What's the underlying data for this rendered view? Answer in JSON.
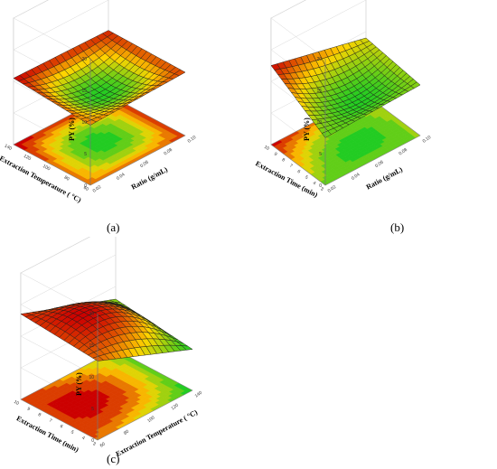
{
  "chart_data": [
    {
      "id": "a",
      "type": "surface3d",
      "caption": "(a)",
      "xlabel": "Ratio (g/mL)",
      "ylabel": "Extraction Temperature ( °C)",
      "zlabel": "PY (%)",
      "x_ticks": [
        "0.02",
        "0.04",
        "0.06",
        "0.08",
        "0.10"
      ],
      "y_ticks": [
        "60",
        "80",
        "100",
        "120",
        "140"
      ],
      "z_ticks": [
        "0",
        "5",
        "10",
        "15",
        "20"
      ],
      "zlim": [
        0,
        20
      ],
      "surface_corners_z": {
        "x_low_y_low": 9.5,
        "x_high_y_low": 10,
        "x_low_y_high": 10.5,
        "x_high_y_high": 10.2
      },
      "surface_center_z": 7.5,
      "colors": {
        "high": "#cc0000",
        "mid": "#ffd400",
        "low": "#22cc22"
      }
    },
    {
      "id": "b",
      "type": "surface3d",
      "caption": "(b)",
      "xlabel": "Ratio (g/mL)",
      "ylabel": "Extraction Time (min)",
      "zlabel": "PY (%)",
      "x_ticks": [
        "0.02",
        "0.04",
        "0.06",
        "0.08",
        "0.10"
      ],
      "y_ticks": [
        "3",
        "4",
        "5",
        "6",
        "7",
        "8",
        "9",
        "10"
      ],
      "z_ticks": [
        "0",
        "5",
        "10",
        "15",
        "20"
      ],
      "zlim": [
        0,
        20
      ],
      "surface_corners_z": {
        "x_low_y_low": 7.5,
        "x_high_y_low": 8,
        "x_low_y_high": 12.5,
        "x_high_y_high": 9
      },
      "surface_center_z": 7,
      "colors": {
        "high": "#cc0000",
        "mid": "#ffd400",
        "low": "#22cc22"
      }
    },
    {
      "id": "c",
      "type": "surface3d",
      "caption": "(c)",
      "xlabel": "Extraction Temperature ( °C)",
      "ylabel": "Extraction Time (min)",
      "zlabel": "PY (%)",
      "x_ticks": [
        "60",
        "80",
        "100",
        "120",
        "140"
      ],
      "y_ticks": [
        "3",
        "4",
        "5",
        "6",
        "7",
        "8",
        "9",
        "10"
      ],
      "z_ticks": [
        "0",
        "5",
        "10",
        "15",
        "20"
      ],
      "zlim": [
        0,
        20
      ],
      "surface_corners_z": {
        "x_low_y_low": 12.5,
        "x_high_y_low": 6.5,
        "x_low_y_high": 13.5,
        "x_high_y_high": 8
      },
      "surface_center_z": 13.5,
      "colors": {
        "high": "#cc0000",
        "mid": "#ffd400",
        "low": "#22cc22"
      }
    }
  ]
}
